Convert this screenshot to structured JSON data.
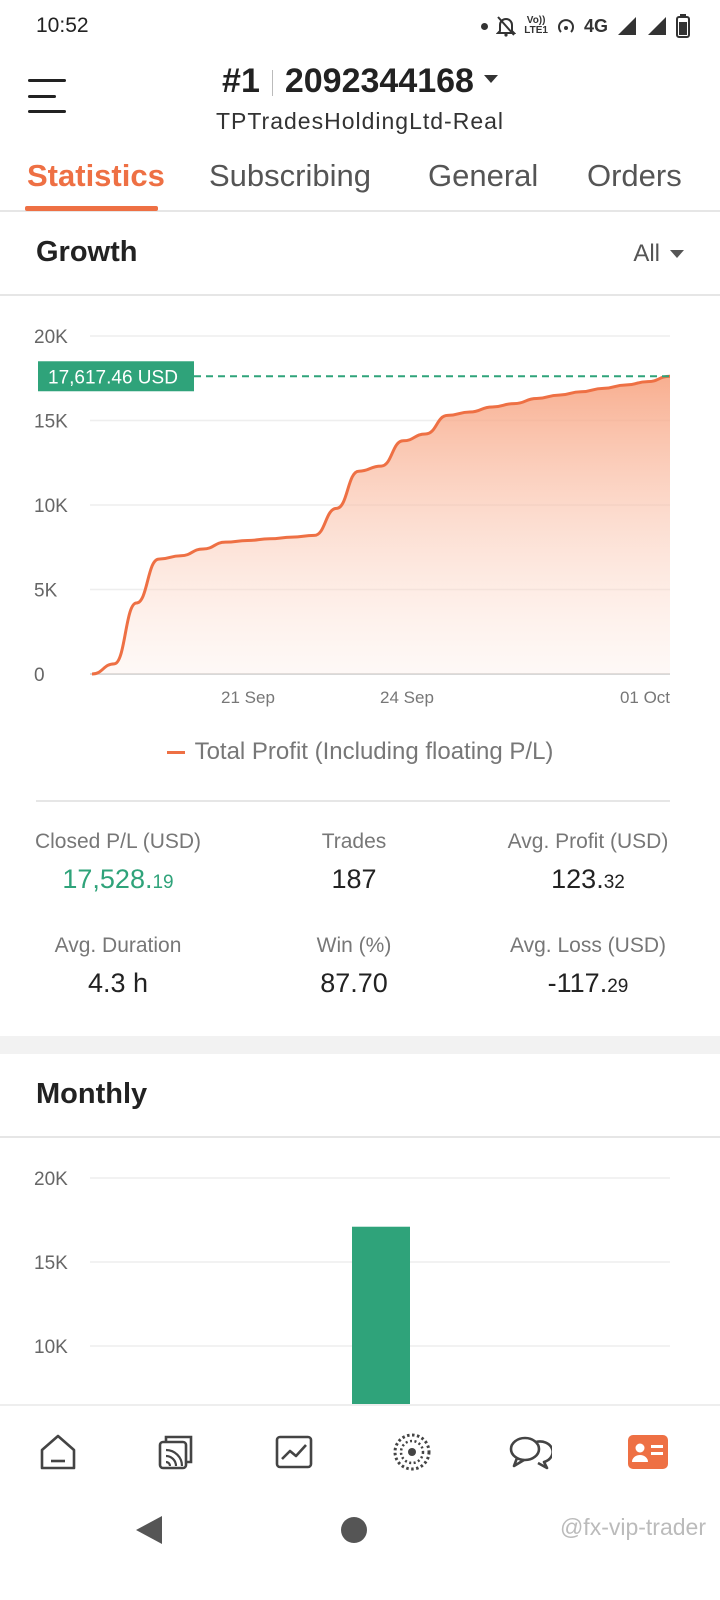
{
  "status_bar": {
    "time": "10:52",
    "network": "4G",
    "volte_top": "Vo))",
    "volte_bottom": "LTE1"
  },
  "header": {
    "account_number": "#1",
    "account_id": "2092344168",
    "server": "TPTradesHoldingLtd-Real"
  },
  "tabs": [
    {
      "label": "Statistics",
      "active": true
    },
    {
      "label": "Subscribing",
      "active": false
    },
    {
      "label": "General",
      "active": false
    },
    {
      "label": "Orders",
      "active": false
    }
  ],
  "growth": {
    "title": "Growth",
    "range": "All",
    "current_value_label": "17,617.46 USD",
    "legend": "Total Profit (Including floating P/L)"
  },
  "stats": {
    "closed_pl": {
      "label": "Closed P/L (USD)",
      "value_main": "17,528.",
      "value_decimal": "19"
    },
    "trades": {
      "label": "Trades",
      "value": "187"
    },
    "avg_profit": {
      "label": "Avg. Profit (USD)",
      "value_main": "123.",
      "value_decimal": "32"
    },
    "avg_duration": {
      "label": "Avg. Duration",
      "value": "4.3 h"
    },
    "win": {
      "label": "Win (%)",
      "value": "87.70"
    },
    "avg_loss": {
      "label": "Avg. Loss (USD)",
      "value_main": "-117.",
      "value_decimal": "29"
    }
  },
  "monthly": {
    "title": "Monthly"
  },
  "watermark": "@fx-vip-trader",
  "colors": {
    "accent": "#ee7044",
    "positive": "#2fa37a",
    "grid": "#eeeeee"
  },
  "icons": {
    "bottom_nav": [
      "home-icon",
      "copy-trading-icon",
      "chart-icon",
      "network-icon",
      "chat-icon",
      "profile-card-icon"
    ],
    "system_nav": [
      "back-icon",
      "home-circle-icon"
    ]
  },
  "chart_data": [
    {
      "type": "area",
      "title": "",
      "series": [
        {
          "name": "Total Profit (Including floating P/L)",
          "values": [
            0,
            600,
            4200,
            6800,
            7000,
            7400,
            7800,
            7900,
            8000,
            8100,
            8200,
            9800,
            12000,
            12300,
            13800,
            14200,
            15300,
            15500,
            15800,
            16000,
            16300,
            16500,
            16700,
            16900,
            17100,
            17300,
            17617.46
          ]
        }
      ],
      "x_tick_labels": [
        "21 Sep",
        "24 Sep",
        "01 Oct"
      ],
      "y_tick_labels": [
        "0",
        "5K",
        "10K",
        "15K",
        "20K"
      ],
      "ylim": [
        0,
        20000
      ],
      "current_value": 17617.46,
      "grid": true
    },
    {
      "type": "bar",
      "title": "",
      "values": [
        17100
      ],
      "y_tick_labels": [
        "10K",
        "15K",
        "20K"
      ],
      "ylim": [
        0,
        20000
      ],
      "grid": true
    }
  ]
}
